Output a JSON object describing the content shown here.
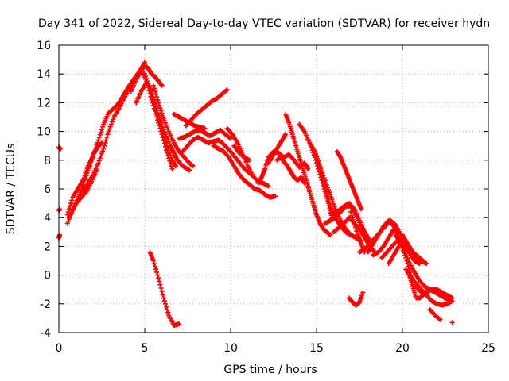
{
  "chart_data": {
    "type": "scatter",
    "title": "Day 341 of 2022, Sidereal Day-to-day VTEC variation (SDTVAR) for receiver hydn",
    "xlabel": "GPS time / hours",
    "ylabel": "SDTVAR / TECUs",
    "xlim": [
      0,
      25
    ],
    "ylim": [
      -4,
      16
    ],
    "xticks": [
      "0",
      "5",
      "10",
      "15",
      "20",
      "25"
    ],
    "yticks": [
      "-4",
      "-2",
      "0",
      "2",
      "4",
      "6",
      "8",
      "10",
      "12",
      "14",
      "16"
    ],
    "grid": true,
    "marker": "plus",
    "color": "#ff0000",
    "series": [
      {
        "name": "arc-01",
        "x": [
          0.0,
          0.05,
          0.1
        ],
        "y": [
          8.9,
          8.8,
          8.8
        ]
      },
      {
        "name": "arc-02",
        "x": [
          0.0,
          0.05
        ],
        "y": [
          4.5,
          4.6
        ]
      },
      {
        "name": "arc-03",
        "x": [
          0.0,
          0.05
        ],
        "y": [
          2.6,
          2.8
        ]
      },
      {
        "name": "arc-04",
        "x": [
          0.5,
          0.8,
          1.1,
          1.4,
          1.7,
          2.0,
          2.3,
          2.6,
          2.9,
          3.2,
          3.5,
          3.8,
          4.1,
          4.4,
          4.7,
          5.0,
          5.2,
          5.4,
          5.6,
          5.8,
          6.0
        ],
        "y": [
          3.6,
          4.5,
          5.2,
          5.8,
          6.4,
          7.0,
          7.8,
          8.8,
          10.0,
          11.0,
          11.6,
          12.3,
          13.0,
          13.5,
          14.0,
          14.6,
          14.4,
          14.0,
          13.8,
          13.5,
          13.2
        ]
      },
      {
        "name": "arc-05",
        "x": [
          0.5,
          0.8,
          1.1,
          1.4,
          1.7,
          2.0,
          2.3,
          2.6,
          2.9,
          3.2,
          3.5,
          3.8,
          4.1,
          4.4,
          4.7,
          5.0
        ],
        "y": [
          4.2,
          5.4,
          6.0,
          6.6,
          7.6,
          8.3,
          9.4,
          10.5,
          11.3,
          11.6,
          12.0,
          12.6,
          13.2,
          13.7,
          14.2,
          14.8
        ]
      },
      {
        "name": "arc-06",
        "x": [
          0.6,
          0.9,
          1.2,
          1.5,
          1.8,
          2.0,
          2.2,
          2.5
        ],
        "y": [
          4.0,
          4.8,
          5.6,
          6.6,
          7.6,
          8.4,
          8.8,
          9.2
        ]
      },
      {
        "name": "arc-07",
        "x": [
          1.0,
          1.3,
          1.6,
          1.9,
          2.2
        ],
        "y": [
          5.0,
          5.4,
          5.8,
          6.5,
          7.3
        ]
      },
      {
        "name": "arc-08",
        "x": [
          4.2,
          4.5,
          4.8,
          5.1,
          5.4,
          5.7,
          6.0,
          6.3,
          6.6
        ],
        "y": [
          12.8,
          13.6,
          14.3,
          13.5,
          12.2,
          11.0,
          9.8,
          8.5,
          7.4
        ]
      },
      {
        "name": "arc-09",
        "x": [
          4.5,
          4.8,
          5.1,
          5.4,
          5.7,
          6.0,
          6.3,
          6.6,
          6.8
        ],
        "y": [
          12.0,
          12.8,
          13.4,
          12.8,
          11.5,
          10.3,
          9.0,
          8.0,
          7.6
        ]
      },
      {
        "name": "arc-10",
        "x": [
          5.0,
          5.3,
          5.6,
          5.9,
          6.2,
          6.5,
          6.7,
          6.9,
          7.2,
          7.6
        ],
        "y": [
          14.0,
          13.0,
          11.8,
          10.8,
          9.8,
          9.0,
          8.5,
          8.0,
          7.6,
          7.3
        ]
      },
      {
        "name": "arc-11",
        "x": [
          5.5,
          5.8,
          6.1,
          6.4,
          6.7,
          7.0,
          7.3,
          7.6,
          7.8
        ],
        "y": [
          13.2,
          12.0,
          10.9,
          10.0,
          9.2,
          8.6,
          8.2,
          7.8,
          7.6
        ]
      },
      {
        "name": "arc-12",
        "x": [
          5.3,
          5.5,
          5.8,
          6.1,
          6.4,
          6.7,
          7.0
        ],
        "y": [
          1.6,
          1.0,
          -0.2,
          -1.6,
          -2.8,
          -3.5,
          -3.4
        ]
      },
      {
        "name": "arc-13",
        "x": [
          6.7,
          7.0,
          7.3,
          7.6,
          7.9,
          8.2,
          8.5
        ],
        "y": [
          11.2,
          11.0,
          10.8,
          10.6,
          10.4,
          10.3,
          10.2
        ]
      },
      {
        "name": "arc-14",
        "x": [
          7.4,
          7.7,
          8.0,
          8.3,
          8.6,
          8.9,
          9.2,
          9.5,
          9.8
        ],
        "y": [
          10.4,
          10.8,
          11.2,
          11.5,
          11.8,
          12.1,
          12.3,
          12.6,
          12.9
        ]
      },
      {
        "name": "arc-15",
        "x": [
          7.0,
          7.3,
          7.6,
          7.9,
          8.2,
          8.5,
          8.8,
          9.1,
          9.4,
          9.7,
          10.0
        ],
        "y": [
          9.5,
          9.6,
          9.8,
          10.0,
          10.1,
          9.9,
          9.7,
          9.9,
          10.1,
          9.8,
          9.5
        ]
      },
      {
        "name": "arc-16",
        "x": [
          7.2,
          7.5,
          7.8,
          8.1,
          8.4,
          8.7,
          9.0,
          9.3,
          9.6,
          10.0,
          10.4,
          10.8,
          11.2
        ],
        "y": [
          8.6,
          9.0,
          9.4,
          9.6,
          9.4,
          9.2,
          9.3,
          9.4,
          9.1,
          8.6,
          8.0,
          7.4,
          7.0
        ]
      },
      {
        "name": "arc-17",
        "x": [
          9.0,
          9.3,
          9.6,
          9.9,
          10.2,
          10.5,
          10.8,
          11.1,
          11.4,
          11.7,
          12.0,
          12.3,
          12.6
        ],
        "y": [
          9.0,
          8.8,
          8.6,
          8.2,
          7.6,
          7.0,
          6.6,
          6.3,
          6.0,
          5.9,
          5.6,
          5.4,
          5.5
        ]
      },
      {
        "name": "arc-18",
        "x": [
          9.8,
          10.1,
          10.4,
          10.7,
          11.0,
          11.3,
          11.6,
          11.9,
          12.2
        ],
        "y": [
          10.2,
          9.8,
          9.2,
          8.4,
          7.6,
          6.9,
          6.5,
          6.4,
          6.2
        ]
      },
      {
        "name": "arc-19",
        "x": [
          10.2,
          10.5,
          10.8,
          11.1
        ],
        "y": [
          9.0,
          8.5,
          8.2,
          8.0
        ]
      },
      {
        "name": "arc-20",
        "x": [
          11.6,
          11.8,
          12.0,
          12.2,
          12.5,
          12.8,
          13.1,
          13.4,
          13.7,
          14.0,
          14.3,
          14.5
        ],
        "y": [
          6.4,
          6.8,
          7.4,
          8.2,
          8.6,
          8.5,
          8.2,
          8.4,
          8.0,
          7.5,
          7.8,
          7.4
        ]
      },
      {
        "name": "arc-21",
        "x": [
          12.2,
          12.5,
          12.8,
          13.0,
          13.2
        ],
        "y": [
          7.8,
          8.4,
          9.0,
          9.4,
          9.8
        ]
      },
      {
        "name": "arc-22",
        "x": [
          12.7,
          12.9,
          13.1,
          13.3,
          13.5,
          13.7,
          13.9,
          14.1,
          14.3
        ],
        "y": [
          8.0,
          8.2,
          7.9,
          7.6,
          7.2,
          6.8,
          6.6,
          6.8,
          6.4
        ]
      },
      {
        "name": "arc-23",
        "x": [
          13.2,
          13.4,
          13.6,
          13.8,
          14.0,
          14.2,
          14.4,
          14.6,
          14.8,
          15.0,
          15.2,
          15.4,
          15.6,
          15.8
        ],
        "y": [
          11.2,
          10.6,
          9.8,
          9.0,
          8.2,
          7.4,
          6.6,
          5.8,
          5.0,
          4.2,
          3.6,
          3.2,
          3.0,
          2.8
        ]
      },
      {
        "name": "arc-24",
        "x": [
          14.0,
          14.3,
          14.6,
          14.9,
          15.2,
          15.5,
          15.8,
          16.1,
          16.4,
          16.7,
          17.0
        ],
        "y": [
          10.5,
          10.0,
          9.2,
          8.2,
          7.0,
          5.8,
          4.8,
          4.0,
          3.4,
          3.0,
          2.8
        ]
      },
      {
        "name": "arc-25",
        "x": [
          14.6,
          14.9,
          15.2,
          15.5,
          15.8,
          16.1,
          16.4,
          16.7,
          17.0,
          17.3,
          17.6
        ],
        "y": [
          9.2,
          8.6,
          7.6,
          6.6,
          5.6,
          4.6,
          3.8,
          3.2,
          2.8,
          2.6,
          2.4
        ]
      },
      {
        "name": "arc-26",
        "x": [
          14.9,
          15.1,
          15.3,
          15.5,
          15.7,
          15.9
        ],
        "y": [
          8.6,
          7.8,
          7.0,
          6.0,
          5.0,
          4.0
        ]
      },
      {
        "name": "arc-27",
        "x": [
          15.5,
          15.8,
          16.1,
          16.4,
          16.7,
          17.0,
          17.3,
          17.6,
          17.9
        ],
        "y": [
          3.6,
          3.8,
          4.0,
          4.4,
          4.8,
          4.8,
          4.2,
          3.4,
          2.8
        ]
      },
      {
        "name": "arc-28",
        "x": [
          16.0,
          16.3,
          16.6,
          16.9,
          17.2,
          17.5,
          17.8,
          18.1
        ],
        "y": [
          4.2,
          4.5,
          4.8,
          5.0,
          4.6,
          3.8,
          3.0,
          2.4
        ]
      },
      {
        "name": "arc-29",
        "x": [
          16.0,
          16.3,
          16.6,
          16.9,
          17.2,
          17.5,
          17.8,
          18.1,
          18.4
        ],
        "y": [
          3.0,
          3.3,
          3.6,
          4.0,
          3.6,
          3.2,
          2.6,
          2.0,
          1.6
        ]
      },
      {
        "name": "arc-30",
        "x": [
          16.2,
          16.4,
          16.6,
          16.8,
          17.0,
          17.2,
          17.4,
          17.6
        ],
        "y": [
          8.6,
          8.2,
          7.6,
          7.0,
          6.4,
          5.8,
          5.2,
          4.6
        ]
      },
      {
        "name": "arc-31",
        "x": [
          17.0,
          17.2,
          17.4,
          17.6,
          17.8
        ],
        "y": [
          4.4,
          3.6,
          2.8,
          2.2,
          1.6
        ]
      },
      {
        "name": "arc-32",
        "x": [
          17.5,
          17.8,
          18.1,
          18.4,
          18.7,
          19.0,
          19.3,
          19.6,
          19.9,
          20.2,
          20.5,
          20.8,
          21.1,
          21.4
        ],
        "y": [
          1.6,
          1.8,
          2.2,
          2.6,
          3.0,
          3.4,
          3.8,
          3.5,
          2.8,
          2.0,
          1.4,
          1.2,
          1.0,
          0.8
        ]
      },
      {
        "name": "arc-33",
        "x": [
          18.0,
          18.3,
          18.6,
          18.9,
          19.2,
          19.5,
          19.8,
          20.1,
          20.4,
          20.7,
          21.0,
          21.3,
          21.6,
          21.9,
          22.2,
          22.5,
          22.8
        ],
        "y": [
          1.6,
          2.2,
          2.8,
          3.4,
          3.8,
          3.4,
          2.6,
          1.8,
          0.9,
          0.2,
          -0.4,
          -0.8,
          -1.0,
          -1.2,
          -1.4,
          -1.6,
          -1.8
        ]
      },
      {
        "name": "arc-34",
        "x": [
          18.3,
          18.6,
          18.9,
          19.2,
          19.5,
          19.8,
          20.1,
          20.4,
          20.7,
          21.0
        ],
        "y": [
          1.4,
          1.6,
          2.0,
          2.6,
          3.2,
          3.0,
          2.4,
          1.6,
          1.0,
          0.8
        ]
      },
      {
        "name": "arc-35",
        "x": [
          18.8,
          19.1,
          19.4,
          19.7,
          20.0,
          20.3,
          20.6,
          20.9,
          21.2
        ],
        "y": [
          1.2,
          1.6,
          2.0,
          2.4,
          2.8,
          2.2,
          1.6,
          1.3,
          1.0
        ]
      },
      {
        "name": "arc-36",
        "x": [
          19.2,
          19.5,
          19.8,
          20.1,
          20.4,
          20.7,
          21.0
        ],
        "y": [
          0.8,
          1.4,
          2.0,
          2.4,
          1.8,
          1.4,
          1.2
        ]
      },
      {
        "name": "arc-37",
        "x": [
          19.6,
          19.9,
          20.2,
          20.5,
          20.8,
          21.1,
          21.4,
          21.7,
          22.0,
          22.3,
          22.6,
          22.9
        ],
        "y": [
          2.8,
          2.2,
          1.2,
          0.0,
          -0.8,
          -1.2,
          -1.2,
          -1.0,
          -1.0,
          -1.2,
          -1.4,
          -1.6
        ]
      },
      {
        "name": "arc-38",
        "x": [
          20.2,
          20.5,
          20.8,
          21.1,
          21.4,
          21.7,
          22.0,
          22.3,
          22.6,
          22.9
        ],
        "y": [
          0.4,
          -0.2,
          -0.6,
          -1.0,
          -1.4,
          -1.8,
          -2.0,
          -2.1,
          -2.0,
          -1.8
        ]
      },
      {
        "name": "arc-39",
        "x": [
          20.4,
          20.6,
          20.8,
          21.0,
          21.2
        ],
        "y": [
          0.0,
          -0.8,
          -1.6,
          -1.6,
          -1.4
        ]
      },
      {
        "name": "arc-40",
        "x": [
          21.6,
          21.9,
          22.2
        ],
        "y": [
          -2.4,
          -2.8,
          -3.1
        ]
      },
      {
        "name": "arc-41",
        "x": [
          22.9
        ],
        "y": [
          -3.3
        ]
      },
      {
        "name": "arc-42",
        "x": [
          16.9,
          17.1,
          17.3,
          17.5,
          17.7
        ],
        "y": [
          -1.6,
          -1.9,
          -2.1,
          -1.9,
          -1.2
        ]
      }
    ]
  }
}
